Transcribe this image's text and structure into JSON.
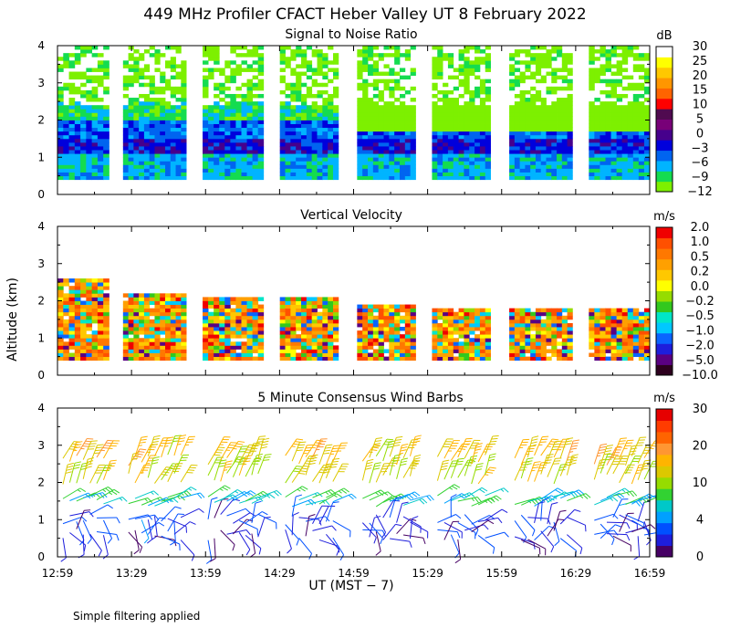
{
  "header": {
    "title": "449 MHz Profiler CFACT Heber Valley UT  8 February 2022"
  },
  "footer": {
    "note": "Simple filtering applied"
  },
  "colors": {
    "snr": [
      "#7df000",
      "#14dc50",
      "#00b4ff",
      "#0064f0",
      "#0000dc",
      "#46008c",
      "#780078",
      "#500a50",
      "#ff0000",
      "#ff6400",
      "#ff9600",
      "#ffc800",
      "#ffff00",
      "#ffffff"
    ],
    "velocity": [
      "#2d001e",
      "#5a0082",
      "#1e1edc",
      "#0a64ff",
      "#00c8ff",
      "#00e6c8",
      "#32c81e",
      "#96dc00",
      "#ffff00",
      "#ffc800",
      "#ffa000",
      "#ff7800",
      "#ff5000",
      "#f00000"
    ],
    "wind": [
      "#460064",
      "#1e1edc",
      "#0050ff",
      "#00a0ff",
      "#00c8c8",
      "#32d232",
      "#96dc00",
      "#dcc800",
      "#ffb400",
      "#ff9632",
      "#ff6400",
      "#ff3c00",
      "#e60000"
    ]
  },
  "chart_data": [
    {
      "type": "heatmap",
      "title": "Signal to Noise Ratio",
      "xlabel": "",
      "ylabel": "",
      "ylim": [
        0,
        4
      ],
      "yticks": [
        "0",
        "1",
        "2",
        "3",
        "4"
      ],
      "colorbar_unit": "dB",
      "colorbar_labels": [
        "30",
        "25",
        "20",
        "15",
        "10",
        "5",
        "0",
        "−3",
        "−6",
        "−9",
        "−12"
      ],
      "segments": [
        {
          "x": [
            0.0,
            0.22
          ],
          "top": 4.0,
          "base": 0.4
        },
        {
          "x": [
            0.28,
            0.55
          ],
          "top": 4.0,
          "base": 0.4
        },
        {
          "x": [
            0.62,
            0.88
          ],
          "top": 4.0,
          "base": 0.4
        },
        {
          "x": [
            0.95,
            1.2
          ],
          "top": 4.0,
          "base": 0.4
        },
        {
          "x": [
            1.28,
            1.53
          ],
          "top": 4.0,
          "base": 0.4
        },
        {
          "x": [
            1.6,
            1.85
          ],
          "top": 4.0,
          "base": 0.4
        },
        {
          "x": [
            1.93,
            2.2
          ],
          "top": 4.0,
          "base": 0.4
        },
        {
          "x": [
            2.27,
            2.53
          ],
          "top": 4.0,
          "base": 0.4
        }
      ],
      "layers": [
        {
          "min": 0.4,
          "max": 1.0,
          "snr_db": -6
        },
        {
          "min": 1.0,
          "max": 1.5,
          "snr_db": 0
        },
        {
          "min": 1.5,
          "max": 2.0,
          "snr_db": -3
        },
        {
          "min": 2.0,
          "max": 2.5,
          "snr_db": -9
        },
        {
          "min": 2.5,
          "max": 4.0,
          "snr_db": -12
        }
      ]
    },
    {
      "type": "heatmap",
      "title": "Vertical Velocity",
      "xlabel": "",
      "ylabel": "Altitude (km)",
      "ylim": [
        0,
        4
      ],
      "yticks": [
        "0",
        "1",
        "2",
        "3",
        "4"
      ],
      "colorbar_unit": "m/s",
      "colorbar_labels": [
        "2.0",
        "1.0",
        "0.5",
        "0.2",
        "0.0",
        "−0.2",
        "−0.5",
        "−1.0",
        "−2.0",
        "−5.0",
        "−10.0"
      ],
      "segments": [
        {
          "x": [
            0.0,
            0.22
          ],
          "top": 2.6
        },
        {
          "x": [
            0.28,
            0.55
          ],
          "top": 2.2
        },
        {
          "x": [
            0.62,
            0.88
          ],
          "top": 2.1
        },
        {
          "x": [
            0.95,
            1.2
          ],
          "top": 2.1
        },
        {
          "x": [
            1.28,
            1.53
          ],
          "top": 1.9
        },
        {
          "x": [
            1.6,
            1.85
          ],
          "top": 1.8
        },
        {
          "x": [
            1.93,
            2.2
          ],
          "top": 1.8
        },
        {
          "x": [
            2.27,
            2.53
          ],
          "top": 1.8
        }
      ],
      "base": 0.4
    },
    {
      "type": "scatter",
      "title": "5 Minute Consensus Wind Barbs",
      "xlabel": "UT  (MST − 7)",
      "ylabel": "",
      "ylim": [
        0,
        4
      ],
      "yticks": [
        "0",
        "1",
        "2",
        "3",
        "4"
      ],
      "xticks": [
        "12:59",
        "13:29",
        "13:59",
        "14:29",
        "14:59",
        "15:29",
        "15:59",
        "16:29",
        "16:59"
      ],
      "colorbar_unit": "m/s",
      "colorbar_labels": [
        "30",
        "20",
        "10",
        "4",
        "0"
      ],
      "profile": [
        {
          "altitude_km": 2.6,
          "speed_ms": 20
        },
        {
          "altitude_km": 2.1,
          "speed_ms": 18
        },
        {
          "altitude_km": 1.5,
          "speed_ms": 11
        },
        {
          "altitude_km": 1.0,
          "speed_ms": 4
        },
        {
          "altitude_km": 0.6,
          "speed_ms": 2
        }
      ]
    }
  ]
}
